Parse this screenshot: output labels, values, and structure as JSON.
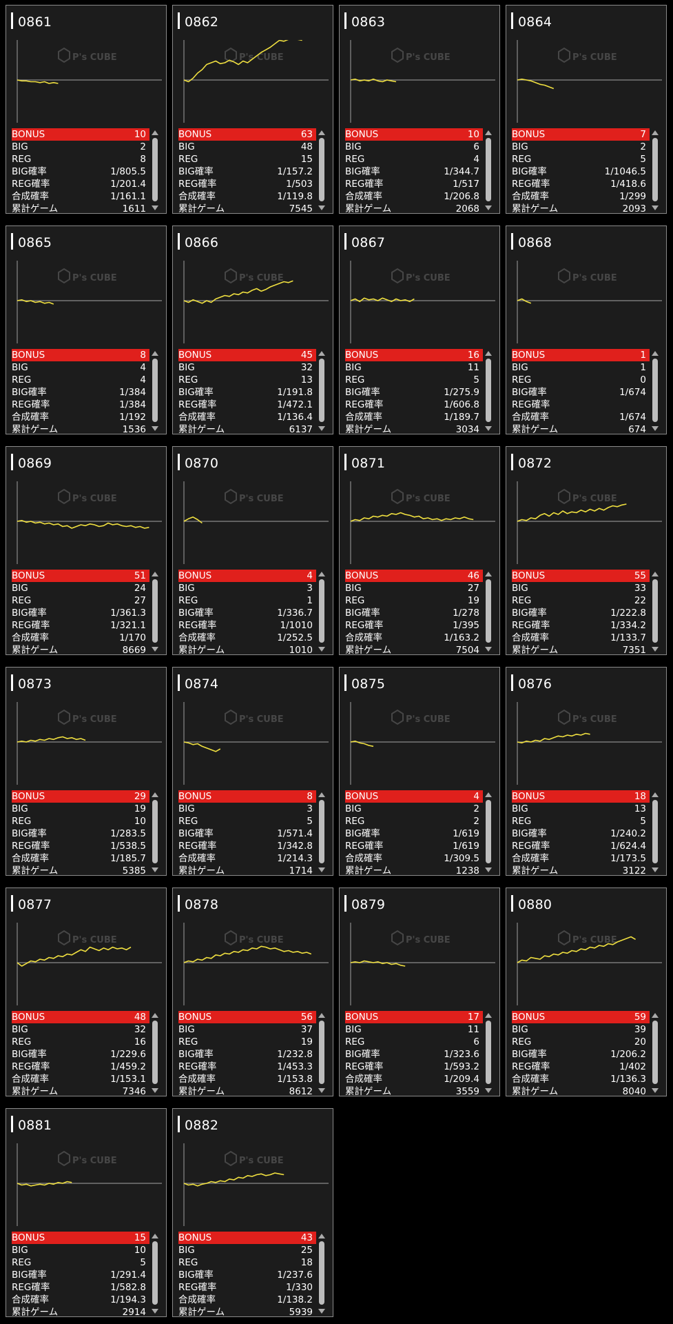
{
  "labels": {
    "bonus": "BONUS",
    "big": "BIG",
    "reg": "REG",
    "big_rate": "BIG確率",
    "reg_rate": "REG確率",
    "total_rate": "合成確率",
    "games": "累計ゲーム"
  },
  "watermark": "P's CUBE",
  "colors": {
    "bonus_bar": "#e0201c",
    "graph_line": "#f0e040",
    "card_bg": "#1c1c1c"
  },
  "machines": [
    {
      "id": "0861",
      "bonus": "10",
      "big": "2",
      "reg": "8",
      "big_rate": "1/805.5",
      "reg_rate": "1/201.4",
      "total_rate": "1/161.1",
      "games": "1611",
      "trend": [
        0,
        -1,
        -1,
        -2,
        -2,
        -3,
        -2,
        -4,
        -3,
        -4
      ]
    },
    {
      "id": "0862",
      "bonus": "63",
      "big": "48",
      "reg": "15",
      "big_rate": "1/157.2",
      "reg_rate": "1/503",
      "total_rate": "1/119.8",
      "games": "7545",
      "trend": [
        0,
        -2,
        2,
        8,
        12,
        18,
        20,
        22,
        19,
        20,
        23,
        21,
        18,
        22,
        20,
        24,
        28,
        32,
        35,
        38,
        42,
        46,
        45,
        47,
        48,
        47,
        46
      ]
    },
    {
      "id": "0863",
      "bonus": "10",
      "big": "6",
      "reg": "4",
      "big_rate": "1/344.7",
      "reg_rate": "1/517",
      "total_rate": "1/206.8",
      "games": "2068",
      "trend": [
        0,
        1,
        -1,
        0,
        -1,
        1,
        -1,
        -2,
        0,
        -1,
        -2
      ]
    },
    {
      "id": "0864",
      "bonus": "7",
      "big": "2",
      "reg": "5",
      "big_rate": "1/1046.5",
      "reg_rate": "1/418.6",
      "total_rate": "1/299",
      "games": "2093",
      "trend": [
        0,
        1,
        0,
        -1,
        -3,
        -5,
        -6,
        -8,
        -10
      ]
    },
    {
      "id": "0865",
      "bonus": "8",
      "big": "4",
      "reg": "4",
      "big_rate": "1/384",
      "reg_rate": "1/384",
      "total_rate": "1/192",
      "games": "1536",
      "trend": [
        0,
        1,
        -1,
        0,
        -2,
        -1,
        -3,
        -2,
        -4
      ]
    },
    {
      "id": "0866",
      "bonus": "45",
      "big": "32",
      "reg": "13",
      "big_rate": "1/191.8",
      "reg_rate": "1/472.1",
      "total_rate": "1/136.4",
      "games": "6137",
      "trend": [
        0,
        -2,
        1,
        -1,
        -3,
        0,
        -2,
        2,
        4,
        6,
        5,
        8,
        7,
        10,
        9,
        12,
        14,
        11,
        13,
        16,
        18,
        20,
        22,
        21,
        23
      ]
    },
    {
      "id": "0867",
      "bonus": "16",
      "big": "11",
      "reg": "5",
      "big_rate": "1/275.9",
      "reg_rate": "1/606.8",
      "total_rate": "1/189.7",
      "games": "3034",
      "trend": [
        0,
        2,
        -1,
        3,
        1,
        2,
        0,
        3,
        1,
        -1,
        2,
        0,
        1,
        -1,
        2
      ]
    },
    {
      "id": "0868",
      "bonus": "1",
      "big": "1",
      "reg": "0",
      "big_rate": "1/674",
      "reg_rate": "",
      "total_rate": "1/674",
      "games": "674",
      "trend": [
        0,
        2,
        -1,
        -3
      ]
    },
    {
      "id": "0869",
      "bonus": "51",
      "big": "24",
      "reg": "27",
      "big_rate": "1/361.3",
      "reg_rate": "1/321.1",
      "total_rate": "1/170",
      "games": "8669",
      "trend": [
        0,
        1,
        -1,
        0,
        -2,
        -1,
        -3,
        -2,
        -4,
        -3,
        -6,
        -5,
        -8,
        -6,
        -4,
        -5,
        -3,
        -4,
        -6,
        -5,
        -2,
        -4,
        -3,
        -5,
        -6,
        -5,
        -7,
        -6,
        -8,
        -7
      ]
    },
    {
      "id": "0870",
      "bonus": "4",
      "big": "3",
      "reg": "1",
      "big_rate": "1/336.7",
      "reg_rate": "1/1010",
      "total_rate": "1/252.5",
      "games": "1010",
      "trend": [
        0,
        3,
        5,
        2,
        -2
      ]
    },
    {
      "id": "0871",
      "bonus": "46",
      "big": "27",
      "reg": "19",
      "big_rate": "1/278",
      "reg_rate": "1/395",
      "total_rate": "1/163.2",
      "games": "7504",
      "trend": [
        0,
        2,
        1,
        4,
        3,
        6,
        5,
        7,
        6,
        9,
        8,
        10,
        8,
        7,
        5,
        6,
        3,
        4,
        2,
        3,
        1,
        3,
        2,
        4,
        3,
        5,
        3,
        2
      ]
    },
    {
      "id": "0872",
      "bonus": "55",
      "big": "33",
      "reg": "22",
      "big_rate": "1/222.8",
      "reg_rate": "1/334.2",
      "total_rate": "1/133.7",
      "games": "7351",
      "trend": [
        0,
        2,
        1,
        4,
        3,
        7,
        9,
        6,
        10,
        8,
        12,
        9,
        11,
        10,
        13,
        11,
        14,
        12,
        15,
        13,
        16,
        18,
        17,
        19,
        20
      ]
    },
    {
      "id": "0873",
      "bonus": "29",
      "big": "19",
      "reg": "10",
      "big_rate": "1/283.5",
      "reg_rate": "1/538.5",
      "total_rate": "1/185.7",
      "games": "5385",
      "trend": [
        0,
        1,
        0,
        2,
        1,
        3,
        2,
        4,
        3,
        5,
        6,
        4,
        5,
        3,
        4,
        2
      ]
    },
    {
      "id": "0874",
      "bonus": "8",
      "big": "3",
      "reg": "5",
      "big_rate": "1/571.4",
      "reg_rate": "1/342.8",
      "total_rate": "1/214.3",
      "games": "1714",
      "trend": [
        0,
        -1,
        -3,
        -2,
        -5,
        -7,
        -9,
        -11,
        -8
      ]
    },
    {
      "id": "0875",
      "bonus": "4",
      "big": "2",
      "reg": "2",
      "big_rate": "1/619",
      "reg_rate": "1/619",
      "total_rate": "1/309.5",
      "games": "1238",
      "trend": [
        0,
        1,
        -1,
        -2,
        -4,
        -5
      ]
    },
    {
      "id": "0876",
      "bonus": "18",
      "big": "13",
      "reg": "5",
      "big_rate": "1/240.2",
      "reg_rate": "1/624.4",
      "total_rate": "1/173.5",
      "games": "3122",
      "trend": [
        0,
        -1,
        1,
        0,
        2,
        1,
        4,
        3,
        5,
        7,
        6,
        8,
        7,
        9,
        8,
        10,
        9
      ]
    },
    {
      "id": "0877",
      "bonus": "48",
      "big": "32",
      "reg": "16",
      "big_rate": "1/229.6",
      "reg_rate": "1/459.2",
      "total_rate": "1/153.1",
      "games": "7346",
      "trend": [
        0,
        -4,
        -1,
        2,
        1,
        4,
        3,
        6,
        5,
        8,
        7,
        10,
        9,
        12,
        15,
        13,
        18,
        16,
        14,
        17,
        15,
        18,
        16,
        17,
        15,
        18
      ]
    },
    {
      "id": "0878",
      "bonus": "56",
      "big": "37",
      "reg": "19",
      "big_rate": "1/232.8",
      "reg_rate": "1/453.3",
      "total_rate": "1/153.8",
      "games": "8612",
      "trend": [
        0,
        2,
        1,
        4,
        3,
        6,
        5,
        9,
        8,
        11,
        10,
        13,
        12,
        15,
        14,
        17,
        16,
        19,
        18,
        16,
        17,
        15,
        13,
        14,
        12,
        13,
        11,
        12,
        10
      ]
    },
    {
      "id": "0879",
      "bonus": "17",
      "big": "11",
      "reg": "6",
      "big_rate": "1/323.6",
      "reg_rate": "1/593.2",
      "total_rate": "1/209.4",
      "games": "3559",
      "trend": [
        0,
        1,
        0,
        2,
        1,
        0,
        1,
        -1,
        0,
        -2,
        -1,
        -3,
        -4
      ]
    },
    {
      "id": "0880",
      "bonus": "59",
      "big": "39",
      "reg": "20",
      "big_rate": "1/206.2",
      "reg_rate": "1/402",
      "total_rate": "1/136.3",
      "games": "8040",
      "trend": [
        0,
        3,
        2,
        6,
        5,
        4,
        8,
        7,
        10,
        9,
        12,
        11,
        14,
        13,
        16,
        15,
        18,
        17,
        20,
        19,
        22,
        21,
        24,
        26,
        28,
        30,
        27
      ]
    },
    {
      "id": "0881",
      "bonus": "15",
      "big": "10",
      "reg": "5",
      "big_rate": "1/291.4",
      "reg_rate": "1/582.8",
      "total_rate": "1/194.3",
      "games": "2914",
      "trend": [
        0,
        -2,
        -1,
        -3,
        -2,
        -1,
        -2,
        0,
        -1,
        1,
        0,
        2,
        1
      ]
    },
    {
      "id": "0882",
      "bonus": "43",
      "big": "25",
      "reg": "18",
      "big_rate": "1/237.6",
      "reg_rate": "1/330",
      "total_rate": "1/138.2",
      "games": "5939",
      "trend": [
        0,
        -2,
        -1,
        -3,
        -1,
        0,
        2,
        1,
        3,
        2,
        5,
        4,
        7,
        6,
        9,
        8,
        10,
        11,
        9,
        10,
        12,
        11,
        10
      ]
    }
  ]
}
